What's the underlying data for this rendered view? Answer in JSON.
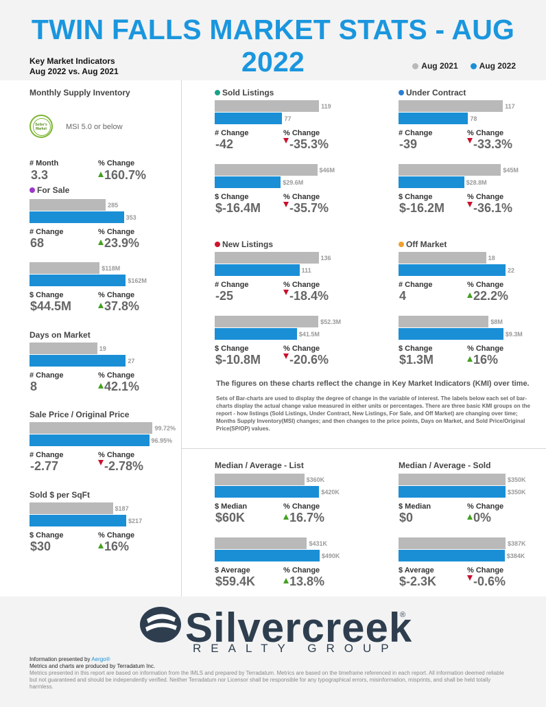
{
  "header": {
    "title": "TWIN FALLS MARKET STATS - AUG 2022",
    "kmi_line1": "Key Market Indicators",
    "kmi_line2": "Aug 2022 vs. Aug 2021"
  },
  "legend": {
    "prior": "Aug 2021",
    "current": "Aug 2022",
    "prior_color": "#b9b9b9",
    "current_color": "#1a8fd6"
  },
  "colors": {
    "sold": "#1aa189",
    "under_contract": "#2a7fd4",
    "new_listings": "#d0142c",
    "off_market": "#f0a030",
    "for_sale": "#9b38c8",
    "arrow_up": "#44a020",
    "arrow_down": "#c8102e"
  },
  "msi": {
    "title": "Monthly Supply Inventory",
    "badge_line1": "Seller's",
    "badge_line2": "Market",
    "note": "MSI 5.0 or below",
    "label_a": "# Month",
    "value_a": "3.3",
    "label_b": "% Change",
    "value_b": "160.7%"
  },
  "labels": {
    "num_change": "# Change",
    "pct_change": "% Change",
    "usd_change": "$ Change",
    "median": "$ Median",
    "average": "$ Average"
  },
  "chart_data": [
    {
      "type": "bar",
      "id": "for_sale_count",
      "title": "For Sale",
      "series": [
        {
          "name": "Aug 2021",
          "value": 285,
          "label": "285"
        },
        {
          "name": "Aug 2022",
          "value": 353,
          "label": "353"
        }
      ],
      "change": "68",
      "pct": "23.9%",
      "dir": "up"
    },
    {
      "type": "bar",
      "id": "for_sale_volume",
      "series": [
        {
          "name": "Aug 2021",
          "value": 118,
          "label": "$118M"
        },
        {
          "name": "Aug 2022",
          "value": 162,
          "label": "$162M"
        }
      ],
      "change": "$44.5M",
      "pct": "37.8%",
      "dir": "up"
    },
    {
      "type": "bar",
      "id": "days_on_market",
      "title": "Days on Market",
      "series": [
        {
          "name": "Aug 2021",
          "value": 19,
          "label": "19"
        },
        {
          "name": "Aug 2022",
          "value": 27,
          "label": "27"
        }
      ],
      "change": "8",
      "pct": "42.1%",
      "dir": "up"
    },
    {
      "type": "bar",
      "id": "sp_op",
      "title": "Sale Price / Original Price",
      "series": [
        {
          "name": "Aug 2021",
          "value": 99.72,
          "label": "99.72%"
        },
        {
          "name": "Aug 2022",
          "value": 96.95,
          "label": "96.95%"
        }
      ],
      "change": "-2.77",
      "pct": "-2.78%",
      "dir": "down"
    },
    {
      "type": "bar",
      "id": "sold_per_sqft",
      "title": "Sold $ per SqFt",
      "series": [
        {
          "name": "Aug 2021",
          "value": 187,
          "label": "$187"
        },
        {
          "name": "Aug 2022",
          "value": 217,
          "label": "$217"
        }
      ],
      "change": "$30",
      "pct": "16%",
      "dir": "up"
    },
    {
      "type": "bar",
      "id": "sold_count",
      "title": "Sold Listings",
      "series": [
        {
          "name": "Aug 2021",
          "value": 119,
          "label": "119"
        },
        {
          "name": "Aug 2022",
          "value": 77,
          "label": "77"
        }
      ],
      "change": "-42",
      "pct": "-35.3%",
      "dir": "down"
    },
    {
      "type": "bar",
      "id": "sold_volume",
      "series": [
        {
          "name": "Aug 2021",
          "value": 46,
          "label": "$46M"
        },
        {
          "name": "Aug 2022",
          "value": 29.6,
          "label": "$29.6M"
        }
      ],
      "change": "$-16.4M",
      "pct": "-35.7%",
      "dir": "down"
    },
    {
      "type": "bar",
      "id": "uc_count",
      "title": "Under Contract",
      "series": [
        {
          "name": "Aug 2021",
          "value": 117,
          "label": "117"
        },
        {
          "name": "Aug 2022",
          "value": 78,
          "label": "78"
        }
      ],
      "change": "-39",
      "pct": "-33.3%",
      "dir": "down"
    },
    {
      "type": "bar",
      "id": "uc_volume",
      "series": [
        {
          "name": "Aug 2021",
          "value": 45,
          "label": "$45M"
        },
        {
          "name": "Aug 2022",
          "value": 28.8,
          "label": "$28.8M"
        }
      ],
      "change": "$-16.2M",
      "pct": "-36.1%",
      "dir": "down"
    },
    {
      "type": "bar",
      "id": "new_count",
      "title": "New Listings",
      "series": [
        {
          "name": "Aug 2021",
          "value": 136,
          "label": "136"
        },
        {
          "name": "Aug 2022",
          "value": 111,
          "label": "111"
        }
      ],
      "change": "-25",
      "pct": "-18.4%",
      "dir": "down"
    },
    {
      "type": "bar",
      "id": "new_volume",
      "series": [
        {
          "name": "Aug 2021",
          "value": 52.3,
          "label": "$52.3M"
        },
        {
          "name": "Aug 2022",
          "value": 41.5,
          "label": "$41.5M"
        }
      ],
      "change": "$-10.8M",
      "pct": "-20.6%",
      "dir": "down"
    },
    {
      "type": "bar",
      "id": "off_count",
      "title": "Off Market",
      "series": [
        {
          "name": "Aug 2021",
          "value": 18,
          "label": "18"
        },
        {
          "name": "Aug 2022",
          "value": 22,
          "label": "22"
        }
      ],
      "change": "4",
      "pct": "22.2%",
      "dir": "up"
    },
    {
      "type": "bar",
      "id": "off_volume",
      "series": [
        {
          "name": "Aug 2021",
          "value": 8,
          "label": "$8M"
        },
        {
          "name": "Aug 2022",
          "value": 9.3,
          "label": "$9.3M"
        }
      ],
      "change": "$1.3M",
      "pct": "16%",
      "dir": "up"
    },
    {
      "type": "bar",
      "id": "list_median",
      "title": "Median / Average - List",
      "series": [
        {
          "name": "Aug 2021",
          "value": 360,
          "label": "$360K"
        },
        {
          "name": "Aug 2022",
          "value": 420,
          "label": "$420K"
        }
      ],
      "change": "$60K",
      "pct": "16.7%",
      "dir": "up"
    },
    {
      "type": "bar",
      "id": "list_average",
      "series": [
        {
          "name": "Aug 2021",
          "value": 431,
          "label": "$431K"
        },
        {
          "name": "Aug 2022",
          "value": 490,
          "label": "$490K"
        }
      ],
      "change": "$59.4K",
      "pct": "13.8%",
      "dir": "up"
    },
    {
      "type": "bar",
      "id": "sold_median",
      "title": "Median / Average - Sold",
      "series": [
        {
          "name": "Aug 2021",
          "value": 350,
          "label": "$350K"
        },
        {
          "name": "Aug 2022",
          "value": 350,
          "label": "$350K"
        }
      ],
      "change": "$0",
      "pct": "0%",
      "dir": "up"
    },
    {
      "type": "bar",
      "id": "sold_average",
      "series": [
        {
          "name": "Aug 2021",
          "value": 387,
          "label": "$387K"
        },
        {
          "name": "Aug 2022",
          "value": 384,
          "label": "$384K"
        }
      ],
      "change": "$-2.3K",
      "pct": "-0.6%",
      "dir": "down"
    }
  ],
  "notes": {
    "heading": "The figures on these charts reflect the change in Key Market Indicators (KMI) over time.",
    "body": "Sets of Bar-charts are used to display the degree of change in the variable of interest. The labels below each set of bar-charts display the actual change value measured in either units or percentages. There are three basic KMI groups on the report - how listings (Sold Listings, Under Contract, New Listings, For Sale, and Off Market) are changing over time; Months Supply Inventory(MSI) changes; and then changes to the price points, Days on Market, and Sold Price/Original Price(SP/OP) values."
  },
  "logo": {
    "word": "Silvercreek",
    "sub": "REALTY GROUP",
    "reg": "®"
  },
  "footer": {
    "presented_prefix": "Information presented by ",
    "presented_by": "Aergo®",
    "line2": "Metrics and charts are produced by Terradatum Inc.",
    "disclaimer": "Metrics presented in this report are based on information from the IMLS and prepared by Terradatum. Metrics are based on the timeframe referenced in each report. All information deemed reliable but not guaranteed and should be independently verified. Neither Terradatum nor Licensor shall be responsible for any typographical errors, misinformation, misprints, and shall be held totally harmless."
  }
}
